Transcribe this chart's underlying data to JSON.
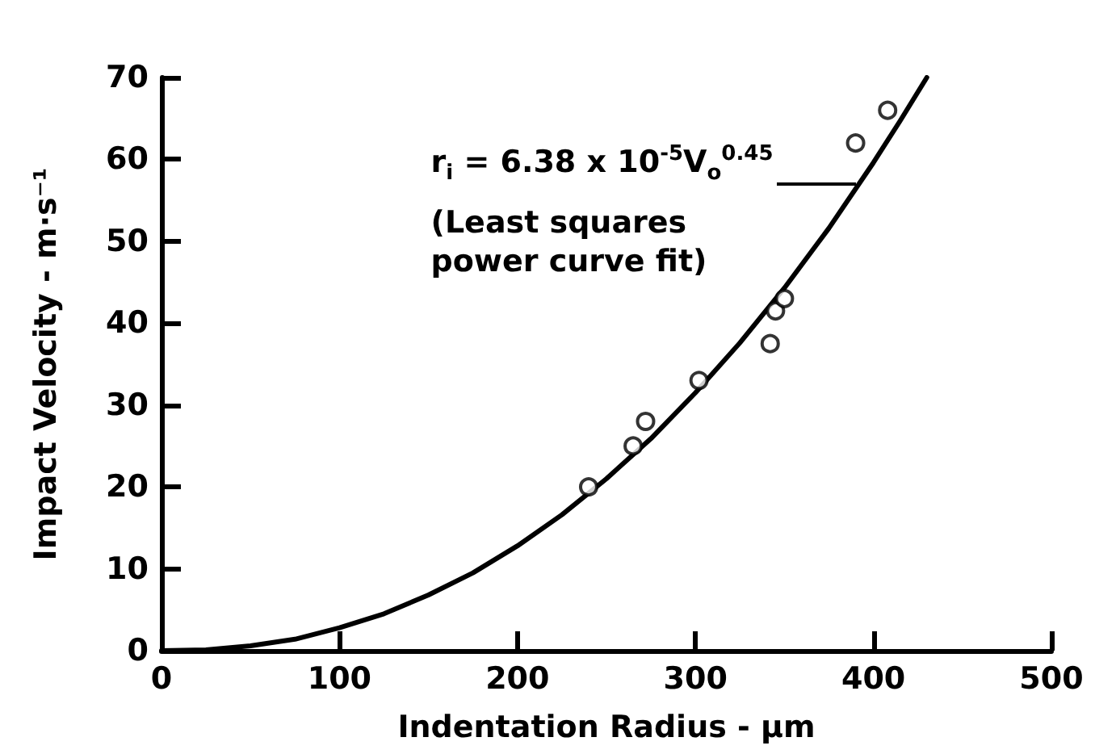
{
  "chart_data": {
    "type": "scatter",
    "xlabel": "Indentation Radius - µm",
    "ylabel": "Impact Velocity - m·s⁻¹",
    "xlim": [
      0,
      500
    ],
    "xticks": [
      0,
      100,
      200,
      300,
      400,
      500
    ],
    "ylim": [
      0,
      70
    ],
    "yticks": [
      0,
      10,
      20,
      30,
      40,
      50,
      60,
      70
    ],
    "grid": false,
    "marker": "circle",
    "series": [
      {
        "type": "scatter",
        "color": "#000000",
        "x": [
          240,
          265,
          272,
          302,
          342,
          345,
          350,
          390,
          408
        ],
        "values": [
          20,
          25,
          28,
          33,
          37.5,
          41.5,
          43,
          62,
          66
        ]
      },
      {
        "type": "line",
        "color": "#000000",
        "marker": "none",
        "line_style": "solid",
        "x": [
          0,
          25,
          50,
          75,
          100,
          125,
          150,
          175,
          200,
          225,
          250,
          275,
          300,
          325,
          350,
          375,
          400,
          415,
          430
        ],
        "values": [
          0,
          0.1,
          0.6,
          1.4,
          2.8,
          4.5,
          6.8,
          9.5,
          12.8,
          16.6,
          21,
          25.9,
          31.5,
          37.6,
          44.3,
          51.6,
          59.6,
          64.7,
          70
        ]
      }
    ],
    "annotations": [
      {
        "text": "r$_{i}$ = 6.38 x 10$^{-5}$V$_{o}$$^{0.45}$",
        "x": 390,
        "y": 57
      },
      "(Least squares\npower curve fit)"
    ]
  }
}
